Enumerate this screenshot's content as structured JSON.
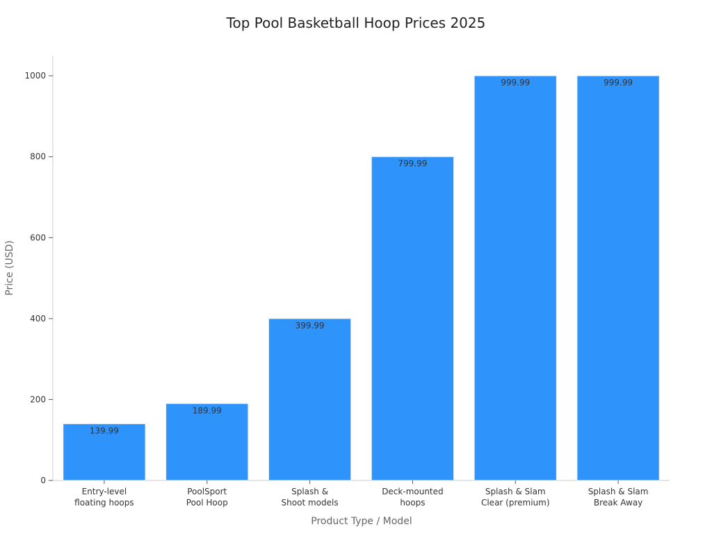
{
  "chart_data": {
    "type": "bar",
    "title": "Top Pool Basketball Hoop Prices 2025",
    "xlabel": "Product Type / Model",
    "ylabel": "Price (USD)",
    "categories": [
      [
        "Entry-level",
        "floating hoops"
      ],
      [
        "PoolSport",
        "Pool Hoop"
      ],
      [
        "Splash &",
        "Shoot models"
      ],
      [
        "Deck-mounted",
        "hoops"
      ],
      [
        "Splash & Slam",
        "Clear (premium)"
      ],
      [
        "Splash & Slam",
        "Break Away"
      ]
    ],
    "values": [
      139.99,
      189.99,
      399.99,
      799.99,
      999.99,
      999.99
    ],
    "data_labels": [
      "139.99",
      "189.99",
      "399.99",
      "799.99",
      "999.99",
      "999.99"
    ],
    "yticks": [
      0,
      200,
      400,
      600,
      800,
      1000
    ],
    "ylim": [
      0,
      1050
    ],
    "grid": false,
    "legend": "none",
    "colors": {
      "bar": "#2e93fa",
      "bar_edge": "#e8eef5",
      "axis": "#cccccc",
      "text": "#333333",
      "muted": "#666666"
    }
  }
}
